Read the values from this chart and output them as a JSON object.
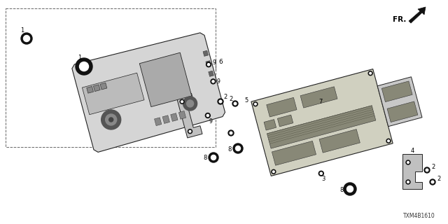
{
  "bg_color": "#ffffff",
  "fig_width": 6.4,
  "fig_height": 3.2,
  "dpi": 100,
  "diagram_code": "TXM4B1610",
  "fr_label": "FR.",
  "line_color": "#222222",
  "fill_light": "#e8e8e8",
  "fill_medium": "#c8c8c8",
  "fill_dark": "#888888"
}
